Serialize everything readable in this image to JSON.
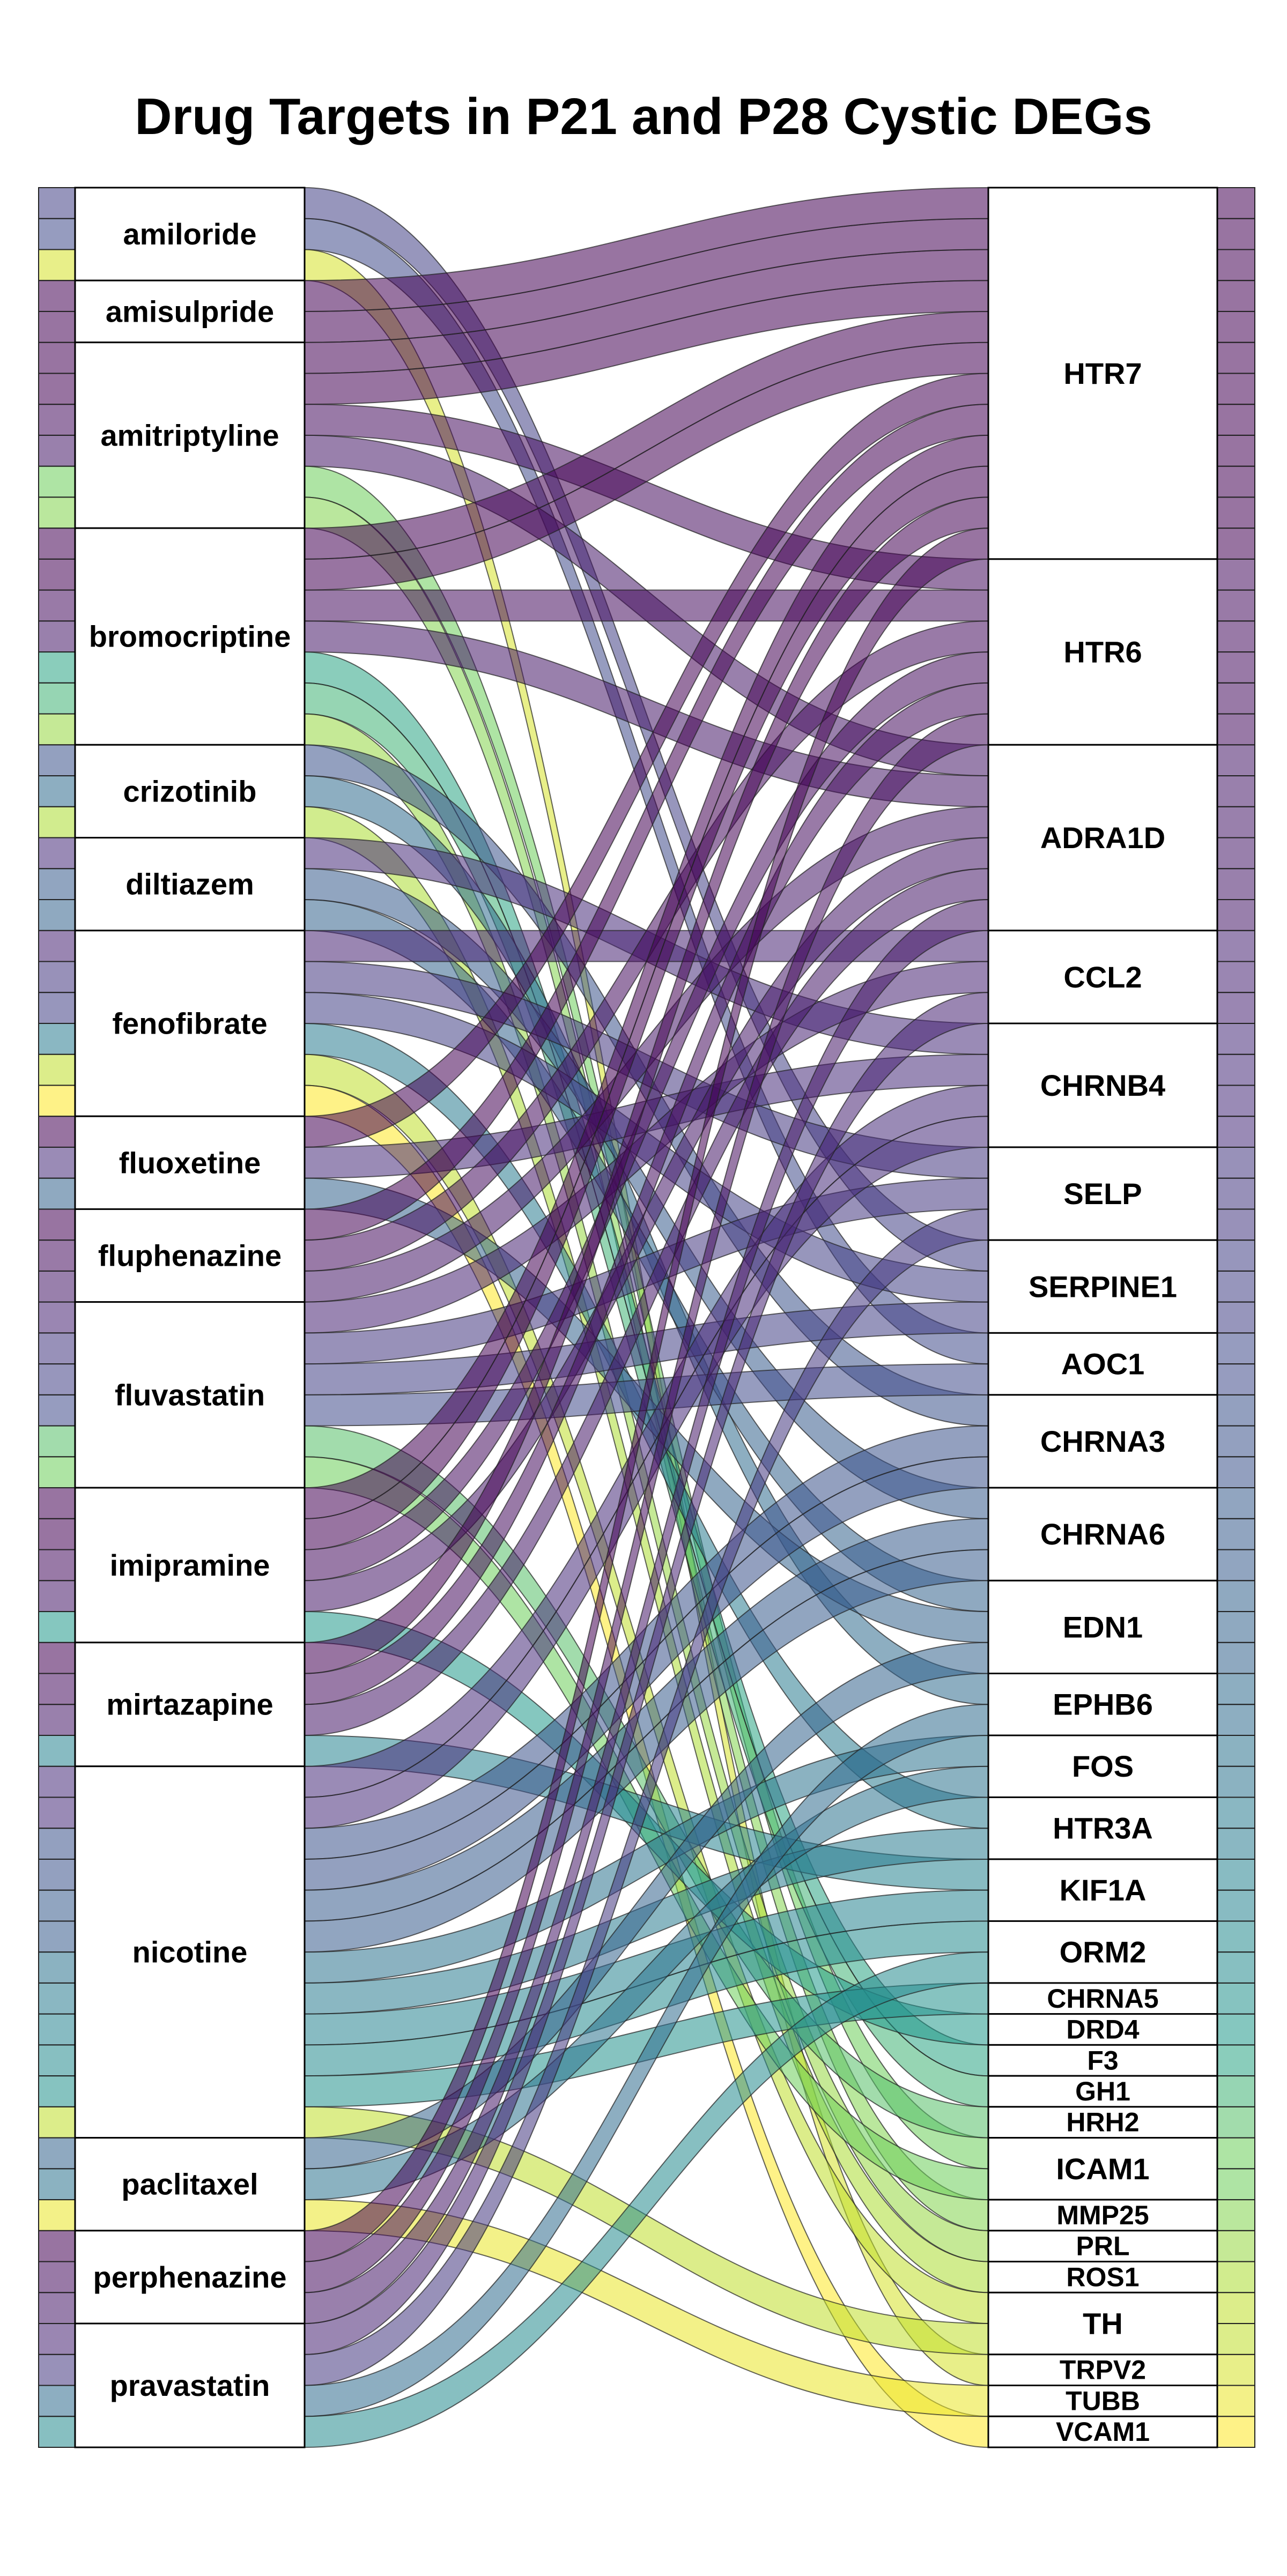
{
  "chart_data": {
    "type": "sankey",
    "title": "Drug Targets in P21 and P28 Cystic DEGs",
    "drugs": [
      "amiloride",
      "amisulpride",
      "amitriptyline",
      "bromocriptine",
      "crizotinib",
      "diltiazem",
      "fenofibrate",
      "fluoxetine",
      "fluphenazine",
      "fluvastatin",
      "imipramine",
      "mirtazapine",
      "nicotine",
      "paclitaxel",
      "perphenazine",
      "pravastatin"
    ],
    "genes": [
      "HTR7",
      "HTR6",
      "ADRA1D",
      "CCL2",
      "CHRNB4",
      "SELP",
      "SERPINE1",
      "AOC1",
      "CHRNA3",
      "CHRNA6",
      "EDN1",
      "EPHB6",
      "FOS",
      "HTR3A",
      "KIF1A",
      "ORM2",
      "CHRNA5",
      "DRD4",
      "F3",
      "GH1",
      "HRH2",
      "ICAM1",
      "MMP25",
      "PRL",
      "ROS1",
      "TH",
      "TRPV2",
      "TUBB",
      "VCAM1"
    ],
    "links": [
      [
        "amiloride",
        "SERPINE1"
      ],
      [
        "amiloride",
        "AOC1"
      ],
      [
        "amiloride",
        "TRPV2"
      ],
      [
        "amisulpride",
        "HTR7"
      ],
      [
        "amisulpride",
        "HTR7"
      ],
      [
        "amitriptyline",
        "HTR7"
      ],
      [
        "amitriptyline",
        "HTR7"
      ],
      [
        "amitriptyline",
        "HTR6"
      ],
      [
        "amitriptyline",
        "ADRA1D"
      ],
      [
        "amitriptyline",
        "ICAM1"
      ],
      [
        "amitriptyline",
        "MMP25"
      ],
      [
        "bromocriptine",
        "HTR7"
      ],
      [
        "bromocriptine",
        "HTR7"
      ],
      [
        "bromocriptine",
        "HTR6"
      ],
      [
        "bromocriptine",
        "ADRA1D"
      ],
      [
        "bromocriptine",
        "F3"
      ],
      [
        "bromocriptine",
        "GH1"
      ],
      [
        "bromocriptine",
        "PRL"
      ],
      [
        "crizotinib",
        "CHRNA3"
      ],
      [
        "crizotinib",
        "EPHB6"
      ],
      [
        "crizotinib",
        "ROS1"
      ],
      [
        "diltiazem",
        "CHRNB4"
      ],
      [
        "diltiazem",
        "CHRNA6"
      ],
      [
        "diltiazem",
        "EDN1"
      ],
      [
        "fenofibrate",
        "CCL2"
      ],
      [
        "fenofibrate",
        "SELP"
      ],
      [
        "fenofibrate",
        "SERPINE1"
      ],
      [
        "fenofibrate",
        "HTR3A"
      ],
      [
        "fenofibrate",
        "TH"
      ],
      [
        "fenofibrate",
        "VCAM1"
      ],
      [
        "fluoxetine",
        "HTR7"
      ],
      [
        "fluoxetine",
        "CHRNB4"
      ],
      [
        "fluoxetine",
        "EDN1"
      ],
      [
        "fluphenazine",
        "HTR7"
      ],
      [
        "fluphenazine",
        "HTR6"
      ],
      [
        "fluphenazine",
        "ADRA1D"
      ],
      [
        "fluvastatin",
        "CCL2"
      ],
      [
        "fluvastatin",
        "SELP"
      ],
      [
        "fluvastatin",
        "SERPINE1"
      ],
      [
        "fluvastatin",
        "AOC1"
      ],
      [
        "fluvastatin",
        "HRH2"
      ],
      [
        "fluvastatin",
        "ICAM1"
      ],
      [
        "imipramine",
        "HTR7"
      ],
      [
        "imipramine",
        "HTR7"
      ],
      [
        "imipramine",
        "HTR6"
      ],
      [
        "imipramine",
        "ADRA1D"
      ],
      [
        "imipramine",
        "DRD4"
      ],
      [
        "mirtazapine",
        "HTR7"
      ],
      [
        "mirtazapine",
        "HTR6"
      ],
      [
        "mirtazapine",
        "ADRA1D"
      ],
      [
        "mirtazapine",
        "KIF1A"
      ],
      [
        "nicotine",
        "CHRNB4"
      ],
      [
        "nicotine",
        "CHRNB4"
      ],
      [
        "nicotine",
        "CHRNA3"
      ],
      [
        "nicotine",
        "CHRNA3"
      ],
      [
        "nicotine",
        "CHRNA6"
      ],
      [
        "nicotine",
        "CHRNA6"
      ],
      [
        "nicotine",
        "FOS"
      ],
      [
        "nicotine",
        "HTR3A"
      ],
      [
        "nicotine",
        "KIF1A"
      ],
      [
        "nicotine",
        "ORM2"
      ],
      [
        "nicotine",
        "CHRNA5"
      ],
      [
        "nicotine",
        "TH"
      ],
      [
        "paclitaxel",
        "EDN1"
      ],
      [
        "paclitaxel",
        "FOS"
      ],
      [
        "paclitaxel",
        "TUBB"
      ],
      [
        "perphenazine",
        "HTR7"
      ],
      [
        "perphenazine",
        "HTR6"
      ],
      [
        "perphenazine",
        "ADRA1D"
      ],
      [
        "pravastatin",
        "CCL2"
      ],
      [
        "pravastatin",
        "SELP"
      ],
      [
        "pravastatin",
        "EPHB6"
      ],
      [
        "pravastatin",
        "ORM2"
      ]
    ],
    "colorscale": "viridis"
  }
}
